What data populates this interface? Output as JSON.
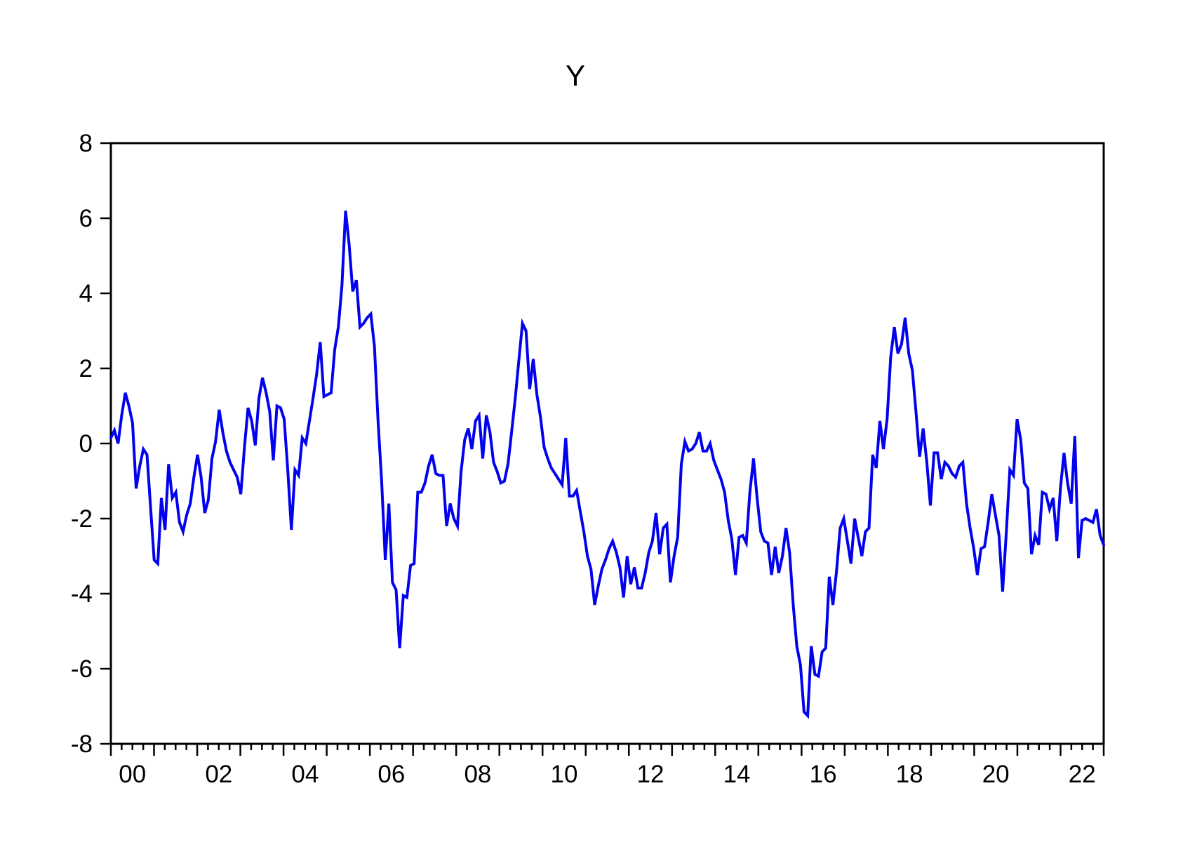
{
  "title": "Y",
  "colors": {
    "line": "#0202ee",
    "axis": "#000000",
    "background": "#ffffff"
  },
  "chart_data": {
    "type": "line",
    "title": "Y",
    "series": [
      {
        "name": "Y",
        "frequency": "monthly",
        "start": "2000M01",
        "end": "2022M12",
        "values": [
          0.15,
          0.35,
          0.0,
          0.75,
          1.35,
          1.0,
          0.55,
          -1.2,
          -0.6,
          -0.15,
          -0.3,
          -1.7,
          -3.1,
          -3.2,
          -1.45,
          -2.3,
          -0.55,
          -1.45,
          -1.3,
          -2.1,
          -2.35,
          -1.9,
          -1.6,
          -0.9,
          -0.3,
          -0.9,
          -1.85,
          -1.5,
          -0.4,
          0.05,
          0.9,
          0.3,
          -0.2,
          -0.5,
          -0.7,
          -0.9,
          -1.35,
          -0.1,
          0.95,
          0.6,
          -0.05,
          1.2,
          1.75,
          1.35,
          0.85,
          -0.45,
          1.0,
          0.95,
          0.65,
          -0.7,
          -2.3,
          -0.7,
          -0.85,
          0.15,
          0.0,
          0.6,
          1.2,
          1.85,
          2.7,
          1.25,
          1.3,
          1.35,
          2.5,
          3.1,
          4.2,
          6.2,
          5.3,
          4.05,
          4.35,
          3.1,
          3.2,
          3.35,
          3.45,
          2.6,
          0.6,
          -1.0,
          -3.1,
          -1.6,
          -3.7,
          -3.9,
          -5.45,
          -4.05,
          -4.1,
          -3.25,
          -3.2,
          -1.3,
          -1.3,
          -1.05,
          -0.6,
          -0.3,
          -0.8,
          -0.85,
          -0.85,
          -2.2,
          -1.6,
          -2.0,
          -2.2,
          -0.75,
          0.1,
          0.4,
          -0.15,
          0.6,
          0.75,
          -0.4,
          0.75,
          0.3,
          -0.5,
          -0.75,
          -1.05,
          -1.0,
          -0.55,
          0.3,
          1.2,
          2.2,
          3.2,
          3.0,
          1.45,
          2.25,
          1.3,
          0.7,
          -0.1,
          -0.4,
          -0.65,
          -0.8,
          -0.95,
          -1.1,
          0.15,
          -1.4,
          -1.4,
          -1.25,
          -1.8,
          -2.35,
          -3.0,
          -3.35,
          -4.3,
          -3.8,
          -3.35,
          -3.1,
          -2.8,
          -2.6,
          -2.9,
          -3.3,
          -4.1,
          -3.0,
          -3.75,
          -3.3,
          -3.85,
          -3.85,
          -3.45,
          -2.9,
          -2.6,
          -1.85,
          -2.95,
          -2.25,
          -2.15,
          -3.7,
          -3.0,
          -2.5,
          -0.55,
          0.05,
          -0.2,
          -0.15,
          0.0,
          0.3,
          -0.2,
          -0.2,
          0.0,
          -0.45,
          -0.7,
          -0.95,
          -1.3,
          -2.05,
          -2.55,
          -3.5,
          -2.5,
          -2.45,
          -2.65,
          -1.3,
          -0.4,
          -1.45,
          -2.35,
          -2.6,
          -2.65,
          -3.5,
          -2.75,
          -3.45,
          -3.0,
          -2.25,
          -2.9,
          -4.3,
          -5.4,
          -5.9,
          -7.15,
          -7.25,
          -5.4,
          -6.15,
          -6.2,
          -5.55,
          -5.45,
          -3.55,
          -4.3,
          -3.4,
          -2.25,
          -2.0,
          -2.6,
          -3.2,
          -2.0,
          -2.5,
          -3.0,
          -2.35,
          -2.25,
          -0.3,
          -0.65,
          0.6,
          -0.15,
          0.65,
          2.3,
          3.1,
          2.4,
          2.65,
          3.35,
          2.4,
          1.95,
          0.85,
          -0.35,
          0.4,
          -0.5,
          -1.65,
          -0.25,
          -0.25,
          -0.95,
          -0.5,
          -0.6,
          -0.8,
          -0.9,
          -0.6,
          -0.5,
          -1.6,
          -2.25,
          -2.8,
          -3.5,
          -2.8,
          -2.75,
          -2.1,
          -1.35,
          -1.9,
          -2.45,
          -3.95,
          -2.4,
          -0.7,
          -0.85,
          0.65,
          0.1,
          -1.05,
          -1.2,
          -2.95,
          -2.45,
          -2.7,
          -1.3,
          -1.35,
          -1.75,
          -1.45,
          -2.6,
          -1.2,
          -0.25,
          -1.05,
          -1.6,
          0.2,
          -3.05,
          -2.05,
          -2.0,
          -2.05,
          -2.1,
          -1.75,
          -2.45,
          -2.7
        ]
      }
    ],
    "xlabel": "",
    "ylabel": "",
    "ylim": [
      -8,
      8
    ],
    "y_tick_labels": [
      "8",
      "6",
      "4",
      "2",
      "0",
      "-2",
      "-4",
      "-6",
      "-8"
    ],
    "y_tick_values": [
      8,
      6,
      4,
      2,
      0,
      -2,
      -4,
      -6,
      -8
    ],
    "x_tick_labels": [
      "00",
      "02",
      "04",
      "06",
      "08",
      "10",
      "12",
      "14",
      "16",
      "18",
      "20",
      "22"
    ],
    "x_years_span": 23,
    "minor_ticks_per_year": 4,
    "grid": "off",
    "legend": "none",
    "line_color": "#0202ee"
  }
}
